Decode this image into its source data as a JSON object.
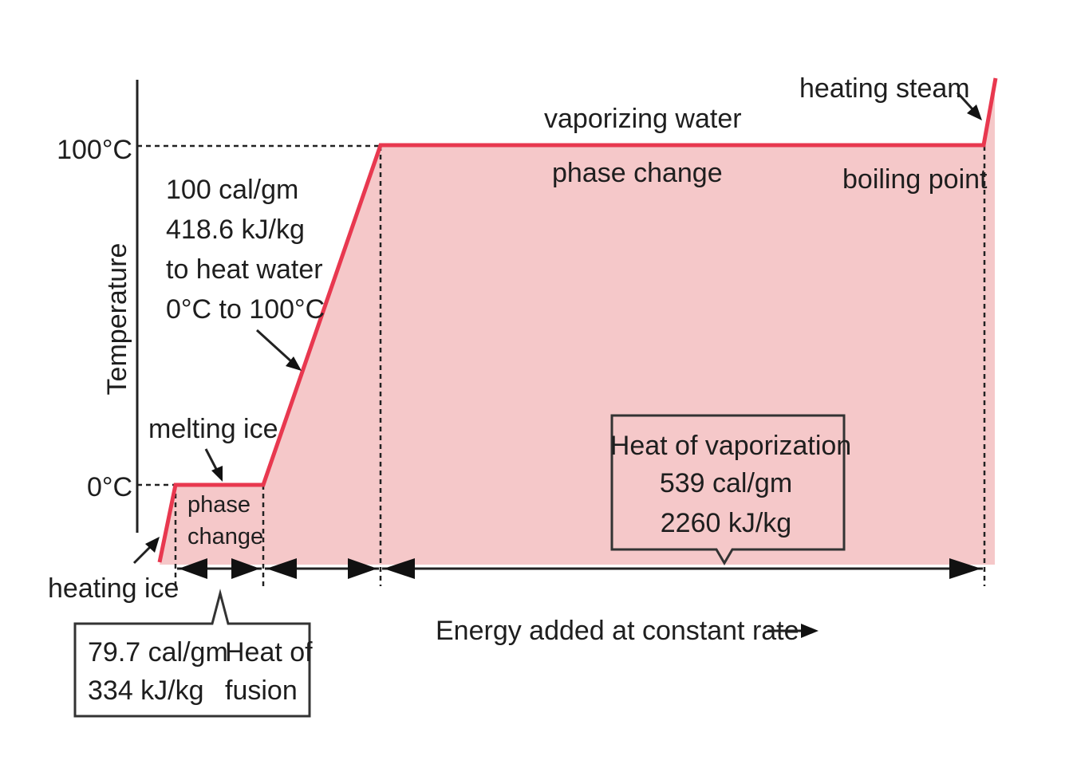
{
  "axis": {
    "y_label": "Temperature",
    "tick_100": "100°C",
    "tick_0": "0°C",
    "x_label": "Energy added at constant rate"
  },
  "stages": {
    "heating_ice": "heating ice",
    "melting_ice": "melting ice",
    "phase_change_1_line1": "phase",
    "phase_change_1_line2": "change",
    "heat_water_line1": "100 cal/gm",
    "heat_water_line2": "418.6 kJ/kg",
    "heat_water_line3": "to heat water",
    "heat_water_line4": "0°C to 100°C",
    "vaporizing_water": "vaporizing water",
    "phase_change_2": "phase change",
    "boiling_point": "boiling point",
    "heating_steam": "heating steam"
  },
  "vaporization_box": {
    "line1": "Heat of vaporization",
    "line2": "539 cal/gm",
    "line3": "2260 kJ/kg"
  },
  "fusion_box": {
    "left_line1": "79.7 cal/gm",
    "left_line2": "334 kJ/kg",
    "right_line1": "Heat of",
    "right_line2": "fusion"
  },
  "colors": {
    "curve": "#e8384f",
    "fill": "#f5c8c9"
  }
}
